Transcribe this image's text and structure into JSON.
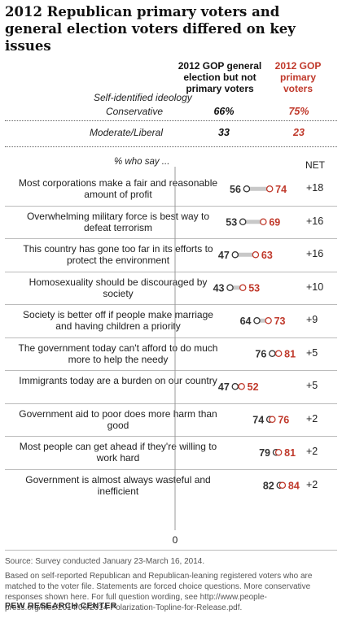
{
  "title": "2012 Republican primary voters and general election voters differed on key issues",
  "columns": {
    "general": "2012 GOP general election but not primary voters",
    "primary": "2012 GOP primary voters"
  },
  "ideology": {
    "label": "Self-identified ideology",
    "rows": [
      {
        "label": "Conservative",
        "general": "66%",
        "primary": "75%"
      },
      {
        "label": "Moderate/Liberal",
        "general": "33",
        "primary": "23"
      }
    ]
  },
  "say_header": "% who say ...",
  "net_header": "NET",
  "colors": {
    "general": "#333333",
    "primary": "#c0392b",
    "connector": "#c8c8c8"
  },
  "chart_data": {
    "type": "dot",
    "xlim": [
      0,
      100
    ],
    "zero_label": "0",
    "series": [
      {
        "name": "2012 GOP general election but not primary voters",
        "color": "#333333"
      },
      {
        "name": "2012 GOP primary voters",
        "color": "#c0392b"
      }
    ],
    "rows": [
      {
        "label": "Most corporations make a fair and reasonable amount of profit",
        "general": 56,
        "primary": 74,
        "net": "+18"
      },
      {
        "label": "Overwhelming military force is best way to defeat terrorism",
        "general": 53,
        "primary": 69,
        "net": "+16"
      },
      {
        "label": "This country has gone too far in its efforts to protect the environment",
        "general": 47,
        "primary": 63,
        "net": "+16"
      },
      {
        "label": "Homosexuality should be discouraged by society",
        "general": 43,
        "primary": 53,
        "net": "+10"
      },
      {
        "label": "Society is better off if people make marriage and having children a priority",
        "general": 64,
        "primary": 73,
        "net": "+9"
      },
      {
        "label": "The government today can't afford to do much more to help the needy",
        "general": 76,
        "primary": 81,
        "net": "+5"
      },
      {
        "label": "Immigrants today are a burden on our country",
        "general": 47,
        "primary": 52,
        "net": "+5"
      },
      {
        "label": "Government aid to poor does more harm than good",
        "general": 74,
        "primary": 76,
        "net": "+2"
      },
      {
        "label": "Most people can get ahead if they're willing to work hard",
        "general": 79,
        "primary": 81,
        "net": "+2"
      },
      {
        "label": "Government is almost always wasteful and inefficient",
        "general": 82,
        "primary": 84,
        "net": "+2"
      }
    ]
  },
  "footer": {
    "source": "Source: Survey conducted January 23-March 16, 2014.",
    "note": "Based on self-reported Republican and Republican-leaning registered voters who are matched to the voter file. Statements are forced choice questions. More conservative responses shown here. For full question wording, see http://www.people-press.org/files/2014/06/2014-Polarization-Topline-for-Release.pdf.",
    "brand": "PEW RESEARCH CENTER"
  }
}
